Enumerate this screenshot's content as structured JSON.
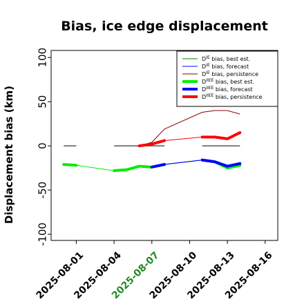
{
  "chart_data": {
    "type": "line",
    "title": "Bias, ice edge displacement",
    "xlabel": "",
    "ylabel": "Displacement bias (km)",
    "xlim": [
      "2025-07-30",
      "2025-08-17"
    ],
    "ylim": [
      -107,
      108
    ],
    "yticks": [
      -100,
      -50,
      0,
      50,
      100
    ],
    "xticks": [
      {
        "label": "2025-08-01",
        "color": "#000000"
      },
      {
        "label": "2025-08-04",
        "color": "#000000"
      },
      {
        "label": "2025-08-07",
        "color": "#228B22"
      },
      {
        "label": "2025-08-10",
        "color": "#000000"
      },
      {
        "label": "2025-08-13",
        "color": "#000000"
      },
      {
        "label": "2025-08-16",
        "color": "#000000"
      }
    ],
    "legend_position": "top-right",
    "series": [
      {
        "name": "D^IE bias, best est.",
        "color": "#008000",
        "width": 1,
        "points": [
          [
            "2025-07-31",
            0
          ],
          [
            "2025-08-01",
            0
          ],
          [
            "2025-08-04",
            0
          ],
          [
            "2025-08-08",
            0
          ],
          [
            "2025-08-11",
            0
          ],
          [
            "2025-08-14",
            0
          ]
        ],
        "segments": [
          [
            "2025-07-31",
            "2025-08-01"
          ],
          [
            "2025-08-04",
            "2025-08-08"
          ],
          [
            "2025-08-11",
            "2025-08-14"
          ]
        ]
      },
      {
        "name": "D^IE bias, forecast",
        "color": "#0000ff",
        "width": 1,
        "points": [
          [
            "2025-08-07",
            -23
          ],
          [
            "2025-08-08",
            -21
          ],
          [
            "2025-08-11",
            -16
          ],
          [
            "2025-08-12",
            -18
          ],
          [
            "2025-08-13",
            -23
          ],
          [
            "2025-08-14",
            -20
          ]
        ]
      },
      {
        "name": "D^IE bias, persistence",
        "color": "#8b0000",
        "width": 1,
        "points": [
          [
            "2025-08-06",
            0
          ],
          [
            "2025-08-07",
            4
          ],
          [
            "2025-08-08",
            19
          ],
          [
            "2025-08-11",
            38
          ],
          [
            "2025-08-12",
            40
          ],
          [
            "2025-08-13",
            40
          ],
          [
            "2025-08-14",
            36
          ]
        ]
      },
      {
        "name": "D^IIEE bias, best est.",
        "color": "#00ee00",
        "width": 4,
        "points": [
          [
            "2025-07-31",
            -21
          ],
          [
            "2025-08-01",
            -22
          ],
          [
            "2025-08-04",
            -28
          ],
          [
            "2025-08-05",
            -27
          ],
          [
            "2025-08-06",
            -23
          ],
          [
            "2025-08-07",
            -24
          ],
          [
            "2025-08-08",
            -21
          ],
          [
            "2025-08-11",
            -16
          ],
          [
            "2025-08-12",
            -18
          ],
          [
            "2025-08-13",
            -25
          ],
          [
            "2025-08-14",
            -22
          ]
        ],
        "thick_segments": [
          [
            "2025-07-31",
            "2025-08-01"
          ],
          [
            "2025-08-04",
            "2025-08-08"
          ],
          [
            "2025-08-11",
            "2025-08-14"
          ]
        ]
      },
      {
        "name": "D^IIEE bias, forecast",
        "color": "#0000ff",
        "width": 4,
        "points": [
          [
            "2025-08-07",
            -24
          ],
          [
            "2025-08-08",
            -21
          ],
          [
            "2025-08-11",
            -16
          ],
          [
            "2025-08-12",
            -18
          ],
          [
            "2025-08-13",
            -23
          ],
          [
            "2025-08-14",
            -20
          ]
        ],
        "thick_segments": [
          [
            "2025-08-07",
            "2025-08-08"
          ],
          [
            "2025-08-11",
            "2025-08-14"
          ]
        ]
      },
      {
        "name": "D^IIEE bias, persistence",
        "color": "#ff0000",
        "width": 4,
        "points": [
          [
            "2025-08-06",
            0
          ],
          [
            "2025-08-07",
            2
          ],
          [
            "2025-08-08",
            6
          ],
          [
            "2025-08-11",
            10
          ],
          [
            "2025-08-12",
            10
          ],
          [
            "2025-08-13",
            8
          ],
          [
            "2025-08-14",
            15
          ]
        ],
        "thick_segments": [
          [
            "2025-08-06",
            "2025-08-08"
          ],
          [
            "2025-08-11",
            "2025-08-14"
          ]
        ]
      }
    ],
    "zero_marks": [
      [
        "2025-07-31",
        "2025-08-01"
      ],
      [
        "2025-08-04",
        "2025-08-08"
      ],
      [
        "2025-08-11",
        "2025-08-14"
      ]
    ]
  }
}
